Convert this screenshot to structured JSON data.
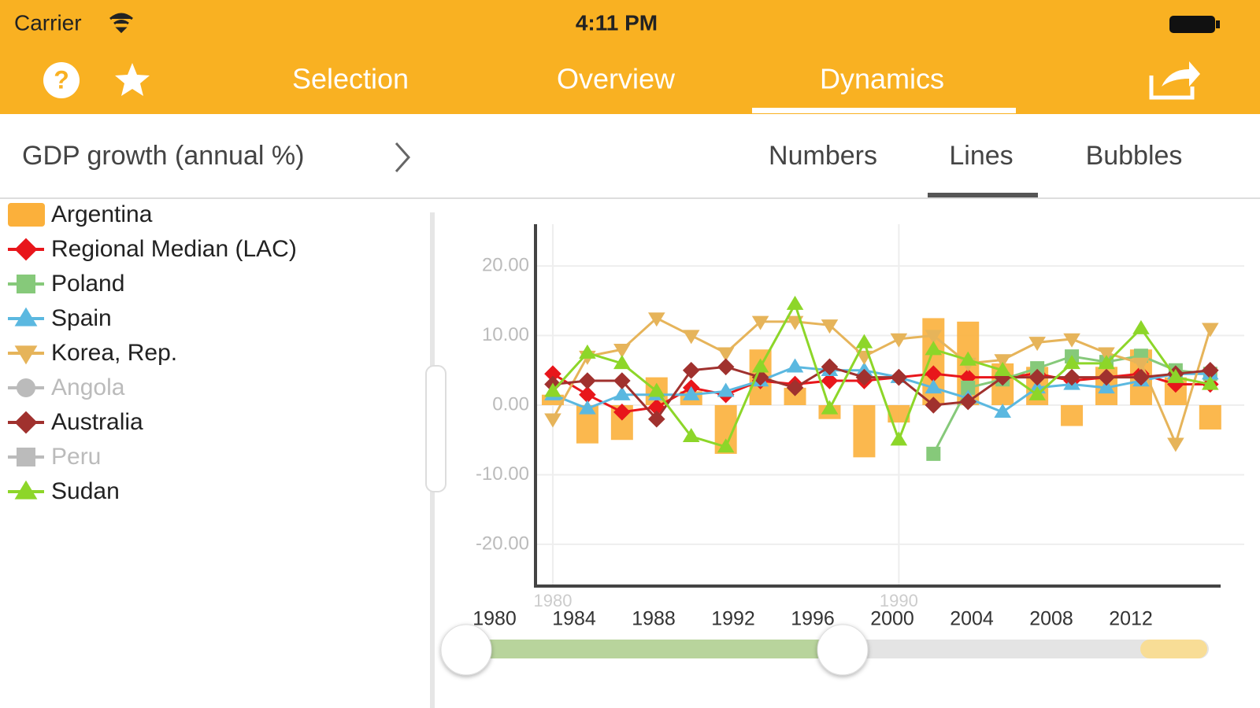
{
  "status_bar": {
    "carrier": "Carrier",
    "time": "4:11 PM"
  },
  "nav": {
    "tabs": [
      "Selection",
      "Overview",
      "Dynamics"
    ],
    "active": 2
  },
  "indicator": "GDP growth (annual %)",
  "views": {
    "tabs": [
      "Numbers",
      "Lines",
      "Bubbles"
    ],
    "active": 1
  },
  "chart_data": {
    "type": "line",
    "x": [
      1980,
      1981,
      1982,
      1983,
      1984,
      1985,
      1986,
      1987,
      1988,
      1989,
      1990,
      1991,
      1992,
      1993,
      1994,
      1995,
      1996,
      1997,
      1998,
      1999
    ],
    "xlim": [
      1979.5,
      1999.3
    ],
    "xticks": [
      1980,
      1990
    ],
    "ylim": [
      -26,
      26
    ],
    "yticks": [
      {
        "value": -20,
        "label": "-20.00"
      },
      {
        "value": -10,
        "label": "-10.00"
      },
      {
        "value": 0,
        "label": "0.00"
      },
      {
        "value": 10,
        "label": "10.00"
      },
      {
        "value": 20,
        "label": "20.00"
      }
    ],
    "grid": true,
    "series": [
      {
        "name": "Argentina",
        "color": "#fbb03b",
        "kind": "bar",
        "marker": "square",
        "visible": true,
        "values": [
          1.5,
          -5.5,
          -5,
          4,
          2,
          -7,
          8,
          2.5,
          -2,
          -7.5,
          -2.5,
          12.5,
          12,
          6,
          5.5,
          -3,
          5.5,
          8,
          4,
          -3.5
        ]
      },
      {
        "name": "Regional Median (LAC)",
        "color": "#e8161b",
        "marker": "diamond",
        "visible": true,
        "values": [
          4.5,
          1.5,
          -1,
          -0.3,
          2.5,
          1.5,
          3.5,
          3,
          3.5,
          3.5,
          4,
          4.5,
          4,
          4,
          4.5,
          3.5,
          4,
          4.5,
          3,
          3
        ]
      },
      {
        "name": "Poland",
        "color": "#86c97a",
        "marker": "square",
        "visible": true,
        "values": [
          null,
          null,
          null,
          null,
          null,
          null,
          null,
          null,
          null,
          null,
          null,
          -7,
          2.5,
          3.7,
          5.3,
          7,
          6.2,
          7.1,
          5,
          4.5
        ]
      },
      {
        "name": "Spain",
        "color": "#5bb8e0",
        "marker": "triangle",
        "visible": true,
        "values": [
          1.5,
          -0.5,
          1.5,
          1.5,
          1.5,
          2,
          3.5,
          5.5,
          5,
          5,
          4,
          2.5,
          1,
          -1,
          2.5,
          3,
          2.5,
          3.5,
          4.5,
          4.5
        ]
      },
      {
        "name": "Korea, Rep.",
        "color": "#e6b45a",
        "marker": "triangle-down",
        "visible": true,
        "values": [
          -2,
          7,
          8,
          12.5,
          10,
          7.5,
          12,
          12,
          11.5,
          7,
          9.5,
          10,
          6,
          6.5,
          9,
          9.5,
          7.5,
          6,
          -5.5,
          11
        ]
      },
      {
        "name": "Angola",
        "color": "#bbbbbb",
        "marker": "circle",
        "visible": false
      },
      {
        "name": "Australia",
        "color": "#a0312e",
        "marker": "diamond",
        "visible": true,
        "values": [
          3,
          3.5,
          3.5,
          -2,
          5,
          5.5,
          4,
          2.5,
          5.5,
          4,
          4,
          0,
          0.5,
          4,
          4,
          4,
          4,
          4,
          4.5,
          5
        ]
      },
      {
        "name": "Peru",
        "color": "#aaaaaa",
        "marker": "square",
        "visible": false
      },
      {
        "name": "Sudan",
        "color": "#8dd629",
        "marker": "triangle",
        "visible": true,
        "values": [
          2,
          7.5,
          6,
          2,
          -4.5,
          -6,
          5.5,
          14.5,
          -0.5,
          9,
          -5,
          8,
          6.5,
          5,
          1.5,
          6,
          6,
          11,
          4,
          3
        ]
      }
    ]
  },
  "slider": {
    "ticks": [
      1980,
      1984,
      1988,
      1992,
      1996,
      2000,
      2004,
      2008,
      2012
    ]
  }
}
